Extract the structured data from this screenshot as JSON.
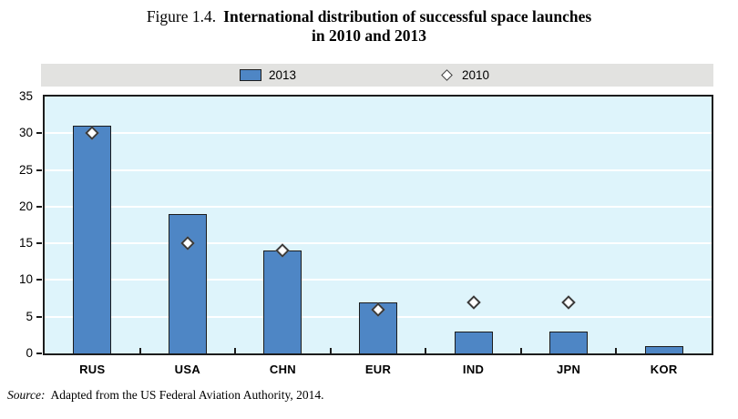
{
  "title": {
    "prefix": "Figure 1.4.",
    "main_line1": "International distribution of successful space launches",
    "main_line2": "in 2010 and 2013"
  },
  "legend": {
    "items": [
      {
        "label": "2013",
        "marker": "bar-swatch"
      },
      {
        "label": "2010",
        "marker": "diamond"
      }
    ]
  },
  "source": {
    "label": "Source:",
    "text": "Adapted from the US Federal Aviation Authority, 2014."
  },
  "chart_data": {
    "type": "bar",
    "title": "Figure 1.4. International distribution of successful space launches in 2010 and 2013",
    "categories": [
      "RUS",
      "USA",
      "CHN",
      "EUR",
      "IND",
      "JPN",
      "KOR"
    ],
    "series": [
      {
        "name": "2013",
        "type": "bar",
        "values": [
          31,
          19,
          14,
          7,
          3,
          3,
          1
        ]
      },
      {
        "name": "2010",
        "type": "scatter",
        "marker": "diamond",
        "values": [
          30,
          15,
          14,
          6,
          7,
          7,
          null
        ]
      }
    ],
    "xlabel": "",
    "ylabel": "",
    "ylim": [
      0,
      35
    ],
    "yticks": [
      0,
      5,
      10,
      15,
      20,
      25,
      30,
      35
    ],
    "grid": "horizontal",
    "legend_position": "top",
    "colors": {
      "bar_fill": "#4e86c5",
      "bar_border": "#1c1c1c",
      "plot_background": "#def4fb",
      "gridline": "#ffffff",
      "legend_background": "#e2e2e0",
      "marker_fill": "#ffffff",
      "marker_border": "#3a3a3a",
      "text": "#000000"
    },
    "source": "Source: Adapted from the US Federal Aviation Authority, 2014."
  }
}
